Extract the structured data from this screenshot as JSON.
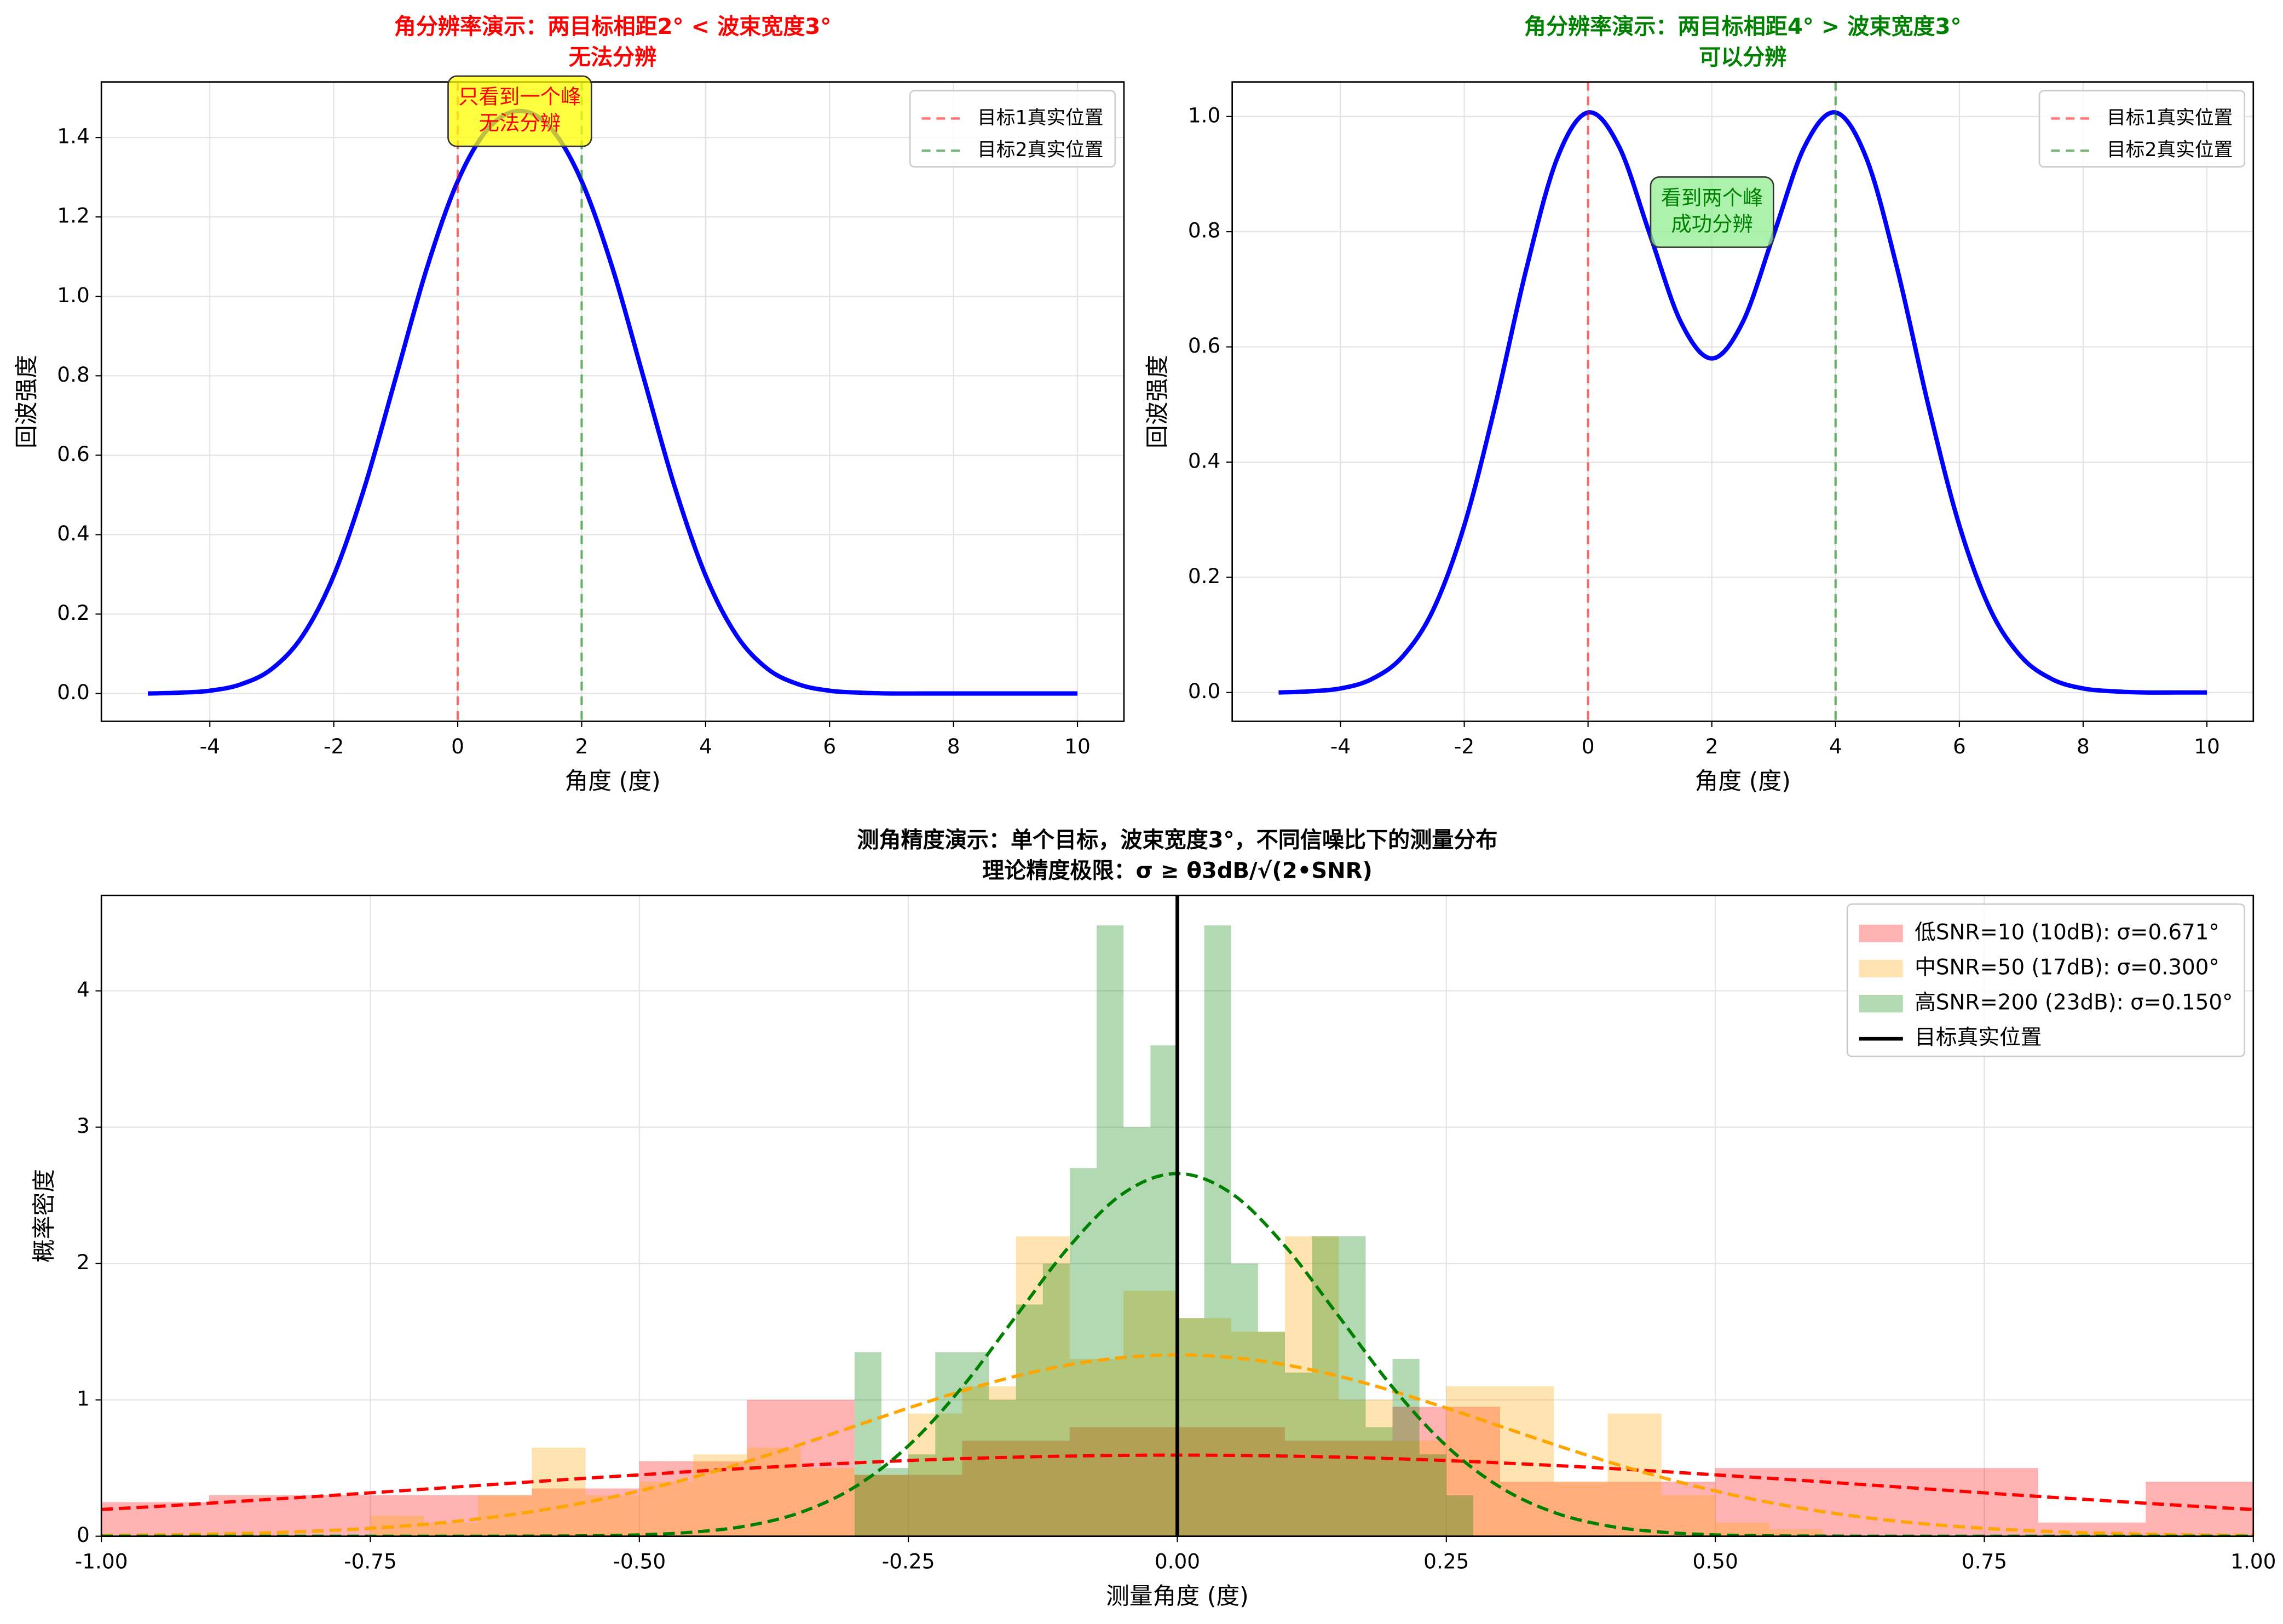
{
  "chart_data": [
    {
      "type": "line",
      "title": [
        "角分辨率演示：两目标相距2° < 波束宽度3°",
        "无法分辨"
      ],
      "title_color": "red",
      "xlabel": "角度 (度)",
      "ylabel": "回波强度",
      "x": [
        -5,
        -4.5,
        -4,
        -3.5,
        -3,
        -2.5,
        -2,
        -1.5,
        -1,
        -0.5,
        0,
        0.5,
        1,
        1.5,
        2,
        2.5,
        3,
        3.5,
        4,
        4.5,
        5,
        5.5,
        6,
        6.5,
        7,
        7.5,
        8,
        8.5,
        9,
        9.5,
        10
      ],
      "series": [
        {
          "color": "blue",
          "values": [
            0,
            0.002,
            0.007,
            0.023,
            0.062,
            0.146,
            0.297,
            0.521,
            0.795,
            1.07,
            1.29,
            1.424,
            1.467,
            1.424,
            1.29,
            1.07,
            0.795,
            0.521,
            0.297,
            0.146,
            0.062,
            0.023,
            0.007,
            0.002,
            0,
            0,
            0,
            0,
            0,
            0,
            0
          ]
        }
      ],
      "vlines": [
        {
          "name": "目标1真实位置",
          "color": "red",
          "x": 0,
          "dashed": true
        },
        {
          "name": "目标2真实位置",
          "color": "green",
          "x": 2,
          "dashed": true
        }
      ],
      "annotation": {
        "lines": [
          "只看到一个峰",
          "无法分辨"
        ],
        "text_color": "red",
        "box_color": "yellow"
      },
      "xlim": [
        -5.75,
        10.75
      ],
      "ylim": [
        -0.07,
        1.54
      ],
      "xticks": [
        -4,
        -2,
        0,
        2,
        4,
        6,
        8,
        10
      ],
      "yticks": [
        {
          "value": 0,
          "label": "0.0"
        },
        0.2,
        0.4,
        0.6,
        0.8,
        {
          "value": 1,
          "label": "1.0"
        },
        1.2,
        1.4
      ],
      "grid": true,
      "legend": "upper right"
    },
    {
      "type": "line",
      "title": [
        "角分辨率演示：两目标相距4° > 波束宽度3°",
        "可以分辨"
      ],
      "title_color": "green",
      "xlabel": "角度 (度)",
      "ylabel": "回波强度",
      "x": [
        -5,
        -4.5,
        -4,
        -3.5,
        -3,
        -2.5,
        -2,
        -1.5,
        -1,
        -0.5,
        0,
        0.5,
        1,
        1.5,
        2,
        2.5,
        3,
        3.5,
        4,
        4.5,
        5,
        5.5,
        6,
        6.5,
        7,
        7.5,
        8,
        8.5,
        9,
        9.5,
        10
      ],
      "series": [
        {
          "color": "blue",
          "values": [
            0,
            0.002,
            0.007,
            0.023,
            0.062,
            0.144,
            0.29,
            0.498,
            0.734,
            0.927,
            1.007,
            0.948,
            0.795,
            0.643,
            0.58,
            0.643,
            0.795,
            0.948,
            1.007,
            0.927,
            0.734,
            0.498,
            0.29,
            0.144,
            0.062,
            0.023,
            0.007,
            0.002,
            0,
            0,
            0
          ]
        }
      ],
      "vlines": [
        {
          "name": "目标1真实位置",
          "color": "red",
          "x": 0,
          "dashed": true
        },
        {
          "name": "目标2真实位置",
          "color": "green",
          "x": 4,
          "dashed": true
        }
      ],
      "annotation": {
        "lines": [
          "看到两个峰",
          "成功分辨"
        ],
        "text_color": "green",
        "box_color": "lightgreen"
      },
      "xlim": [
        -5.75,
        10.75
      ],
      "ylim": [
        -0.05,
        1.06
      ],
      "xticks": [
        -4,
        -2,
        0,
        2,
        4,
        6,
        8,
        10
      ],
      "yticks": [
        {
          "value": 0,
          "label": "0.0"
        },
        0.2,
        0.4,
        0.6,
        0.8,
        {
          "value": 1,
          "label": "1.0"
        }
      ],
      "grid": true,
      "legend": "upper right"
    },
    {
      "type": "histogram",
      "title": [
        "测角精度演示：单个目标，波束宽度3°，不同信噪比下的测量分布",
        "理论精度极限：σ ≥ θ3dB/√(2•SNR)"
      ],
      "title_color": "black",
      "xlabel": "测量角度 (度)",
      "ylabel": "概率密度",
      "alpha": 0.3,
      "series": [
        {
          "name": "低SNR=10 (10dB): σ=0.671°",
          "color": "red",
          "bins": [
            -1,
            -0.9,
            -0.8,
            -0.7,
            -0.6,
            -0.5,
            -0.4,
            -0.3,
            -0.2,
            -0.1,
            0,
            0.1,
            0.2,
            0.3,
            0.4,
            0.5,
            0.6,
            0.7,
            0.8,
            0.9,
            1
          ],
          "values": [
            0.25,
            0.3,
            0.3,
            0.3,
            0.35,
            0.55,
            1.0,
            0.45,
            0.7,
            0.8,
            0.8,
            0.7,
            0.95,
            0.4,
            0.4,
            0.5,
            0.5,
            0.5,
            0.1,
            0.4
          ]
        },
        {
          "name": "中SNR=50 (17dB): σ=0.300°",
          "color": "orange",
          "bins": [
            -0.75,
            -0.7,
            -0.65,
            -0.6,
            -0.55,
            -0.5,
            -0.45,
            -0.4,
            -0.35,
            -0.3,
            -0.25,
            -0.2,
            -0.15,
            -0.1,
            -0.05,
            0,
            0.05,
            0.1,
            0.15,
            0.2,
            0.25,
            0.3,
            0.35,
            0.4,
            0.45,
            0.5,
            0.55,
            0.6
          ],
          "values": [
            0.15,
            0.1,
            0.3,
            0.65,
            0.3,
            0.4,
            0.6,
            0.65,
            0.5,
            0.45,
            0.9,
            1.1,
            2.2,
            1.3,
            1.8,
            1.6,
            1.5,
            2.2,
            1.0,
            0.7,
            1.1,
            1.1,
            0.4,
            0.9,
            0.3,
            0.1,
            0.05
          ]
        },
        {
          "name": "高SNR=200 (23dB): σ=0.150°",
          "color": "green",
          "bins": [
            -0.3,
            -0.275,
            -0.25,
            -0.225,
            -0.2,
            -0.175,
            -0.15,
            -0.125,
            -0.1,
            -0.075,
            -0.05,
            -0.025,
            0,
            0.025,
            0.05,
            0.075,
            0.1,
            0.125,
            0.15,
            0.175,
            0.2,
            0.225,
            0.25,
            0.275
          ],
          "values": [
            1.35,
            0.5,
            0.6,
            1.35,
            1.35,
            1.0,
            1.7,
            2.0,
            2.7,
            4.48,
            3.0,
            3.6,
            1.6,
            4.48,
            2.0,
            1.5,
            1.2,
            2.2,
            2.2,
            0.8,
            1.3,
            0.6,
            0.3
          ]
        }
      ],
      "curve_x": [
        -1,
        -0.95,
        -0.9,
        -0.85,
        -0.8,
        -0.75,
        -0.7,
        -0.65,
        -0.6,
        -0.55,
        -0.5,
        -0.45,
        -0.4,
        -0.35,
        -0.3,
        -0.25,
        -0.2,
        -0.15,
        -0.1,
        -0.05,
        0,
        0.05,
        0.1,
        0.15,
        0.2,
        0.25,
        0.3,
        0.35,
        0.4,
        0.45,
        0.5,
        0.55,
        0.6,
        0.65,
        0.7,
        0.75,
        0.8,
        0.85,
        0.9,
        0.95,
        1
      ],
      "curves": [
        {
          "color": "red",
          "values": [
            0.196,
            0.218,
            0.242,
            0.267,
            0.292,
            0.318,
            0.345,
            0.372,
            0.399,
            0.425,
            0.45,
            0.475,
            0.498,
            0.519,
            0.538,
            0.555,
            0.569,
            0.58,
            0.588,
            0.593,
            0.595,
            0.593,
            0.588,
            0.58,
            0.569,
            0.555,
            0.538,
            0.519,
            0.498,
            0.475,
            0.45,
            0.425,
            0.399,
            0.372,
            0.345,
            0.318,
            0.292,
            0.267,
            0.242,
            0.218,
            0.196
          ]
        },
        {
          "color": "orange",
          "values": [
            0.005,
            0.009,
            0.015,
            0.024,
            0.038,
            0.058,
            0.087,
            0.127,
            0.18,
            0.248,
            0.332,
            0.432,
            0.547,
            0.673,
            0.807,
            0.94,
            1.065,
            1.174,
            1.258,
            1.311,
            1.33,
            1.311,
            1.258,
            1.174,
            1.065,
            0.94,
            0.807,
            0.673,
            0.547,
            0.432,
            0.332,
            0.248,
            0.18,
            0.127,
            0.087,
            0.058,
            0.038,
            0.024,
            0.015,
            0.009,
            0.005
          ]
        },
        {
          "color": "green",
          "values": [
            0,
            0,
            0,
            0,
            0,
            0,
            0,
            0,
            0.001,
            0.003,
            0.01,
            0.03,
            0.076,
            0.175,
            0.36,
            0.663,
            1.093,
            1.613,
            2.129,
            2.516,
            2.66,
            2.516,
            2.129,
            1.613,
            1.093,
            0.663,
            0.36,
            0.175,
            0.076,
            0.03,
            0.01,
            0.003,
            0.001,
            0,
            0,
            0,
            0,
            0,
            0,
            0,
            0
          ]
        }
      ],
      "vlines": [
        {
          "name": "目标真实位置",
          "color": "black",
          "x": 0,
          "dashed": false
        }
      ],
      "xlim": [
        -1,
        1
      ],
      "ylim": [
        0,
        4.7
      ],
      "xticks": [
        {
          "value": -1,
          "label": "-1.00"
        },
        {
          "value": -0.75,
          "label": "-0.75"
        },
        {
          "value": -0.5,
          "label": "-0.50"
        },
        {
          "value": -0.25,
          "label": "-0.25"
        },
        {
          "value": 0,
          "label": "0.00"
        },
        {
          "value": 0.25,
          "label": "0.25"
        },
        {
          "value": 0.5,
          "label": "0.50"
        },
        {
          "value": 0.75,
          "label": "0.75"
        },
        {
          "value": 1,
          "label": "1.00"
        }
      ],
      "yticks": [
        0,
        1,
        2,
        3,
        4
      ],
      "grid": true,
      "legend": "upper right"
    }
  ]
}
